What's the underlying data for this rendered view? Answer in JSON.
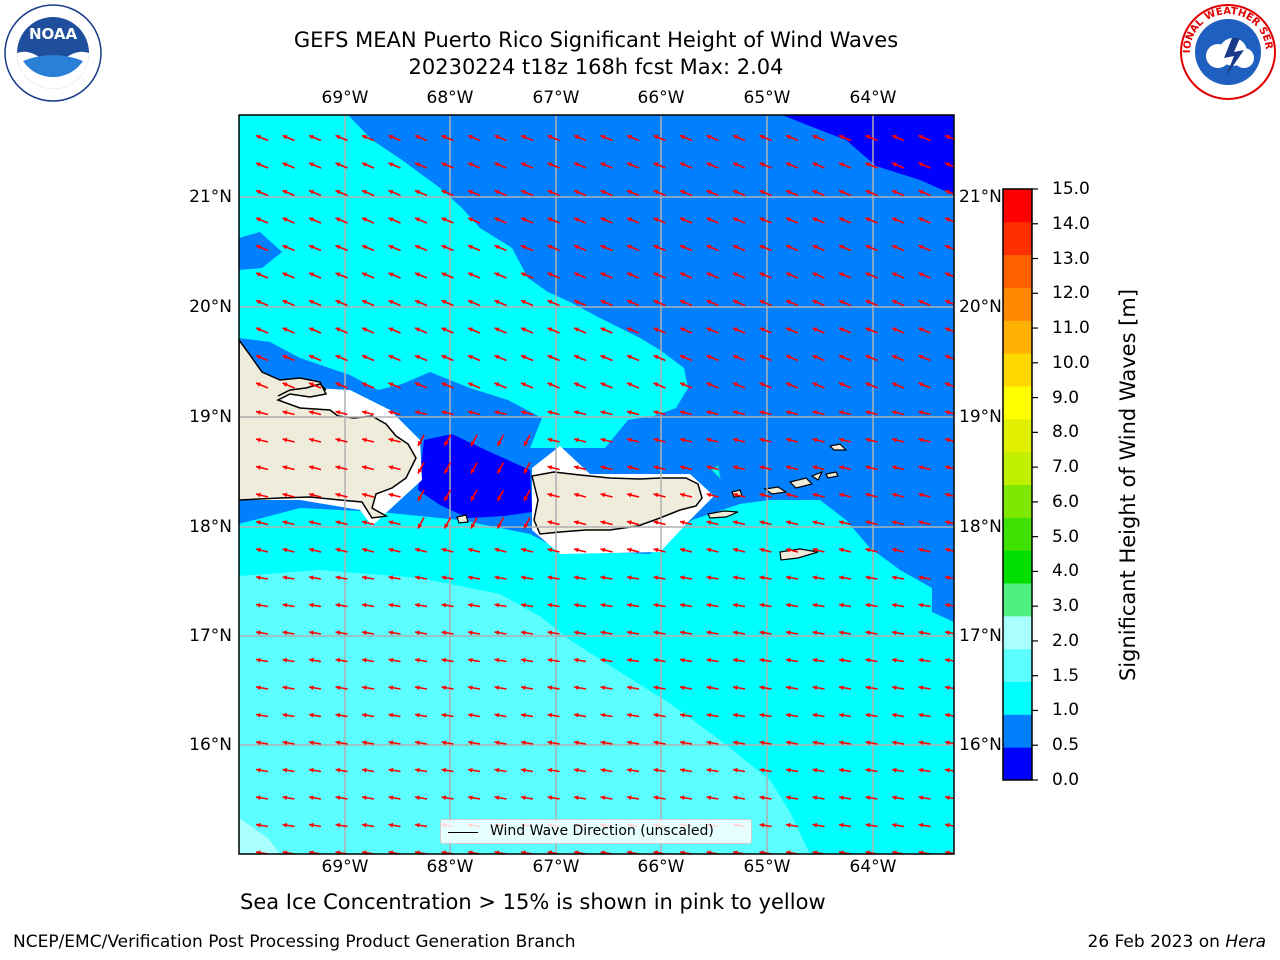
{
  "title": {
    "line1": "GEFS MEAN Puerto Rico Significant Height of Wind Waves",
    "line2": "20230224 t18z 168h fcst   Max: 2.04"
  },
  "map": {
    "lon_ticks": [
      "69°W",
      "68°W",
      "67°W",
      "66°W",
      "65°W",
      "64°W"
    ],
    "lat_ticks": [
      "21°N",
      "20°N",
      "19°N",
      "18°N",
      "17°N",
      "16°N"
    ],
    "legend_label": "Wind Wave Direction (unscaled)",
    "arrow_color": "#ff0000",
    "land_color": "#efecdc"
  },
  "colorbar": {
    "label": "Significant Height of Wind Waves [m]",
    "ticks": [
      "15.0",
      "14.0",
      "13.0",
      "12.0",
      "11.0",
      "10.0",
      "9.0",
      "8.0",
      "7.0",
      "6.0",
      "5.0",
      "4.0",
      "3.0",
      "2.0",
      "1.5",
      "1.0",
      "0.5",
      "0.0"
    ],
    "colors_bottom_to_top": [
      "#0000ff",
      "#0080ff",
      "#00ffff",
      "#5bffff",
      "#aaffff",
      "#50f080",
      "#00e000",
      "#40e000",
      "#80e800",
      "#c0f000",
      "#e0f000",
      "#ffff00",
      "#ffd800",
      "#ffb000",
      "#ff8800",
      "#ff6000",
      "#ff3000",
      "#ff0000"
    ]
  },
  "wave_colors": {
    "0.0-0.5": "#0000ff",
    "0.5-1.0": "#0080ff",
    "1.0-1.5": "#00ffff",
    "1.5-2.0": "#5bffff",
    "2.0-3.0": "#aaffff"
  },
  "notes": {
    "sea_ice": "Sea Ice Concentration > 15% is shown in pink to yellow",
    "footer_left": "NCEP/EMC/Verification Post Processing Product Generation Branch",
    "footer_date": "26 Feb 2023 on ",
    "footer_host": "Hera"
  },
  "logos": {
    "noaa_text": "NOAA",
    "nws_text": "NATIONAL WEATHER SERVICE"
  }
}
